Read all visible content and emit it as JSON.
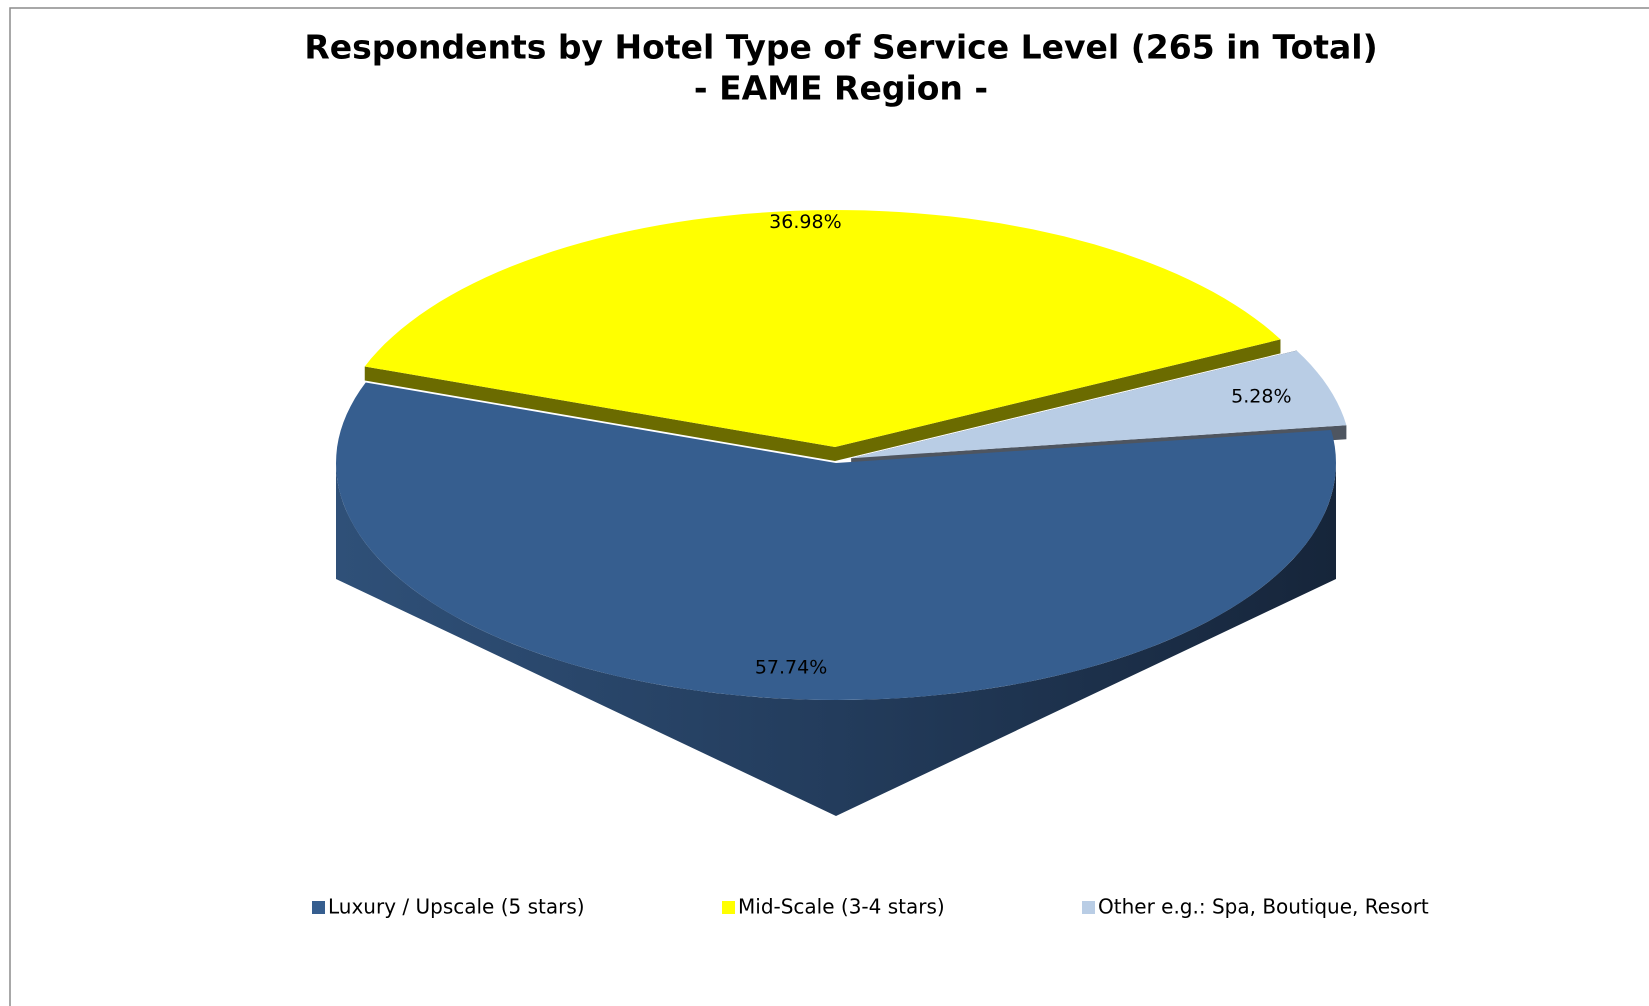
{
  "chart_data": {
    "type": "pie3d",
    "title": "Respondents by Hotel Type of Service Level (265 in Total)",
    "subtitle": "- EAME Region -",
    "categories": [
      "Luxury / Upscale (5 stars)",
      "Mid-Scale (3-4 stars)",
      "Other e.g.: Spa, Boutique, Resort"
    ],
    "values": [
      57.74,
      36.98,
      5.28
    ],
    "value_labels": [
      "57.74%",
      "36.98%",
      "5.28%"
    ],
    "colors": [
      "#365e8f",
      "#ffff00",
      "#b9cde5"
    ],
    "legend": "bottom"
  }
}
